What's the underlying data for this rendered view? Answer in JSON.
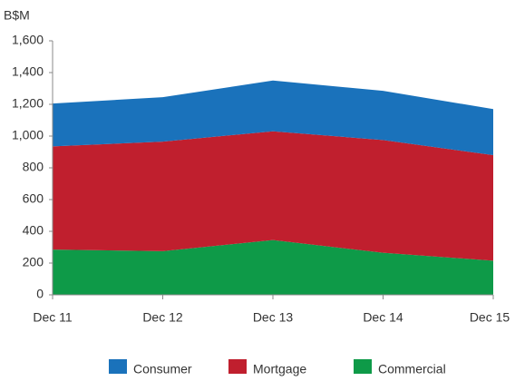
{
  "chart_data": {
    "type": "stacked_area",
    "y_axis_label": "B$M",
    "categories": [
      "Dec 11",
      "Dec 12",
      "Dec 13",
      "Dec 14",
      "Dec 15"
    ],
    "series": [
      {
        "name": "Consumer",
        "color": "#1a72bb",
        "values": [
          270,
          280,
          320,
          310,
          290
        ]
      },
      {
        "name": "Mortgage",
        "color": "#c01f2e",
        "values": [
          650,
          690,
          685,
          710,
          665
        ]
      },
      {
        "name": "Commercial",
        "color": "#0e9a48",
        "values": [
          285,
          275,
          345,
          265,
          215
        ]
      }
    ],
    "ylim": [
      0,
      1600
    ],
    "yticks": [
      0,
      200,
      400,
      600,
      800,
      {
        "value": 1000,
        "label": "1,000"
      },
      {
        "value": 1200,
        "label": "1,200"
      },
      {
        "value": 1400,
        "label": "1,400"
      },
      {
        "value": 1600,
        "label": "1,600"
      }
    ],
    "grid": false
  }
}
